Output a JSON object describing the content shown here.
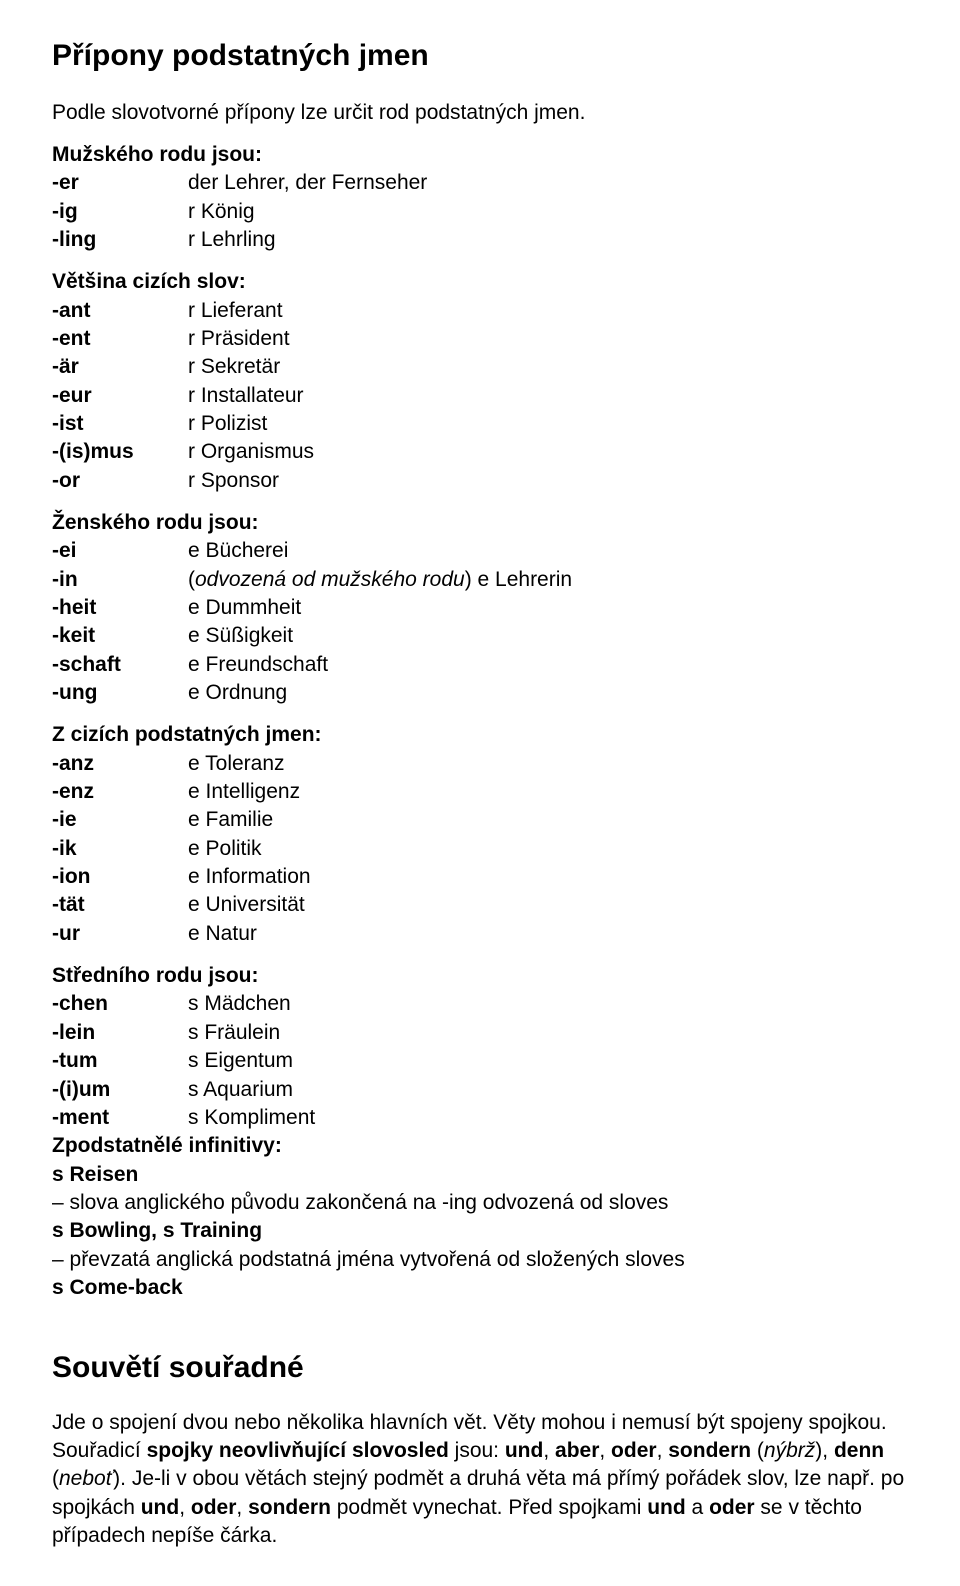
{
  "page": {
    "title": "Přípony podstatných jmen",
    "intro": "Podle slovotvorné přípony lze určit rod podstatných jmen."
  },
  "groups": [
    {
      "heading": "Mužského rodu jsou:",
      "rows": [
        {
          "suffix": "-er",
          "example": "der Lehrer, der Fernseher"
        },
        {
          "suffix": "-ig",
          "example": "r König"
        },
        {
          "suffix": "-ling",
          "example": "r Lehrling"
        }
      ]
    },
    {
      "heading": "Většina cizích slov:",
      "rows": [
        {
          "suffix": "-ant",
          "example": "r Lieferant"
        },
        {
          "suffix": "-ent",
          "example": "r Präsident"
        },
        {
          "suffix": "-är",
          "example": "r Sekretär"
        },
        {
          "suffix": "-eur",
          "example": "r Installateur"
        },
        {
          "suffix": "-ist",
          "example": "r Polizist"
        },
        {
          "suffix": "-(is)mus",
          "example": "r Organismus"
        },
        {
          "suffix": "-or",
          "example": "r Sponsor"
        }
      ]
    },
    {
      "heading": "Ženského rodu jsou:",
      "rows": [
        {
          "suffix": "-ei",
          "example": "e Bücherei"
        },
        {
          "suffix": "-in",
          "example_html": true,
          "example_parts": [
            {
              "text": "(",
              "italic": false
            },
            {
              "text": "odvozená od mužského rodu",
              "italic": true
            },
            {
              "text": ") e Lehrerin",
              "italic": false
            }
          ]
        },
        {
          "suffix": "-heit",
          "example": "e Dummheit"
        },
        {
          "suffix": "-keit",
          "example": "e Süßigkeit"
        },
        {
          "suffix": "-schaft",
          "example": "e Freundschaft"
        },
        {
          "suffix": "-ung",
          "example": "e Ordnung"
        }
      ]
    },
    {
      "heading": "Z cizích podstatných jmen:",
      "rows": [
        {
          "suffix": "-anz",
          "example": "e Toleranz"
        },
        {
          "suffix": "-enz",
          "example": "e Intelligenz"
        },
        {
          "suffix": "-ie",
          "example": "e Familie"
        },
        {
          "suffix": "-ik",
          "example": "e Politik"
        },
        {
          "suffix": "-ion",
          "example": "e Information"
        },
        {
          "suffix": "-tät",
          "example": "e Universität"
        },
        {
          "suffix": "-ur",
          "example": "e Natur"
        }
      ]
    },
    {
      "heading": "Středního rodu jsou:",
      "rows": [
        {
          "suffix": "-chen",
          "example": "s Mädchen"
        },
        {
          "suffix": "-lein",
          "example": "s Fräulein"
        },
        {
          "suffix": "-tum",
          "example": "s Eigentum"
        },
        {
          "suffix": "-(i)um",
          "example": "s Aquarium"
        },
        {
          "suffix": "-ment",
          "example": "s Kompliment"
        }
      ]
    }
  ],
  "zpodstatnele": {
    "heading": "Zpodstatnělé infinitivy:",
    "lines": [
      {
        "bold": true,
        "text": "s Reisen"
      },
      {
        "bold": false,
        "text": "– slova anglického původu zakončená na -ing odvozená od sloves"
      },
      {
        "bold": true,
        "text": "s Bowling, s Training"
      },
      {
        "bold": false,
        "text": "– převzatá anglická podstatná jména vytvořená od složených sloves"
      },
      {
        "bold": true,
        "text": "s Come-back"
      }
    ]
  },
  "souveti": {
    "title": "Souvětí souřadné",
    "para": [
      [
        {
          "text": "Jde o spojení dvou nebo několika hlavních vět. Věty mohou i nemusí být spojeny spojkou. Souřadicí "
        },
        {
          "bold": true,
          "text": "spojky neovlivňující slovosled"
        },
        {
          "text": " jsou: "
        },
        {
          "bold": true,
          "text": "und"
        },
        {
          "text": ", "
        },
        {
          "bold": true,
          "text": "aber"
        },
        {
          "text": ", "
        },
        {
          "bold": true,
          "text": "oder"
        },
        {
          "text": ", "
        },
        {
          "bold": true,
          "text": "sondern"
        },
        {
          "text": " ("
        },
        {
          "italic": true,
          "text": "nýbrž"
        },
        {
          "text": "), "
        },
        {
          "bold": true,
          "text": "denn"
        },
        {
          "text": " ("
        },
        {
          "italic": true,
          "text": "neboť"
        },
        {
          "text": "). Je-li v obou větách stejný podmět a druhá věta má přímý pořádek slov, lze např. po spojkách "
        },
        {
          "bold": true,
          "text": "und"
        },
        {
          "text": ", "
        },
        {
          "bold": true,
          "text": "oder"
        },
        {
          "text": ", "
        },
        {
          "bold": true,
          "text": "sondern"
        },
        {
          "text": " podmět vynechat. Před spojkami "
        },
        {
          "bold": true,
          "text": "und"
        },
        {
          "text": " a "
        },
        {
          "bold": true,
          "text": "oder"
        },
        {
          "text": " se v těchto případech nepíše čárka."
        }
      ]
    ]
  }
}
